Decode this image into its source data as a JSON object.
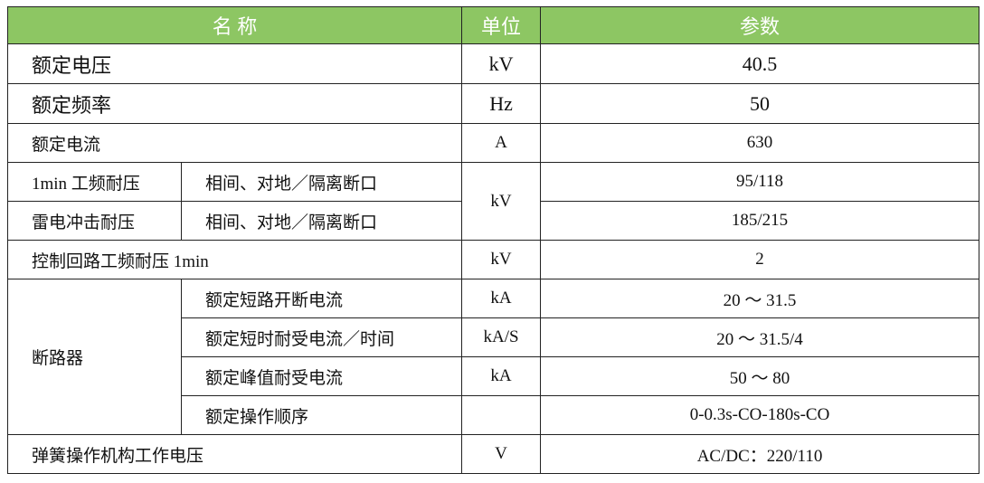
{
  "header": {
    "name": "名 称",
    "unit": "单位",
    "param": "参数",
    "color": "#8dc663"
  },
  "rows": [
    {
      "name": "额定电压",
      "unit": "kV",
      "value": "40.5"
    },
    {
      "name": "额定频率",
      "unit": "Hz",
      "value": "50"
    },
    {
      "name": "额定电流",
      "unit": "A",
      "value": "630"
    },
    {
      "name": "1min 工频耐压",
      "sub": "相间、对地／隔离断口",
      "unit": "kV",
      "value": "95/118"
    },
    {
      "name": "雷电冲击耐压",
      "sub": "相间、对地／隔离断口",
      "value": "185/215"
    },
    {
      "name": "控制回路工频耐压 1min",
      "unit": "kV",
      "value": "2"
    },
    {
      "name": "断路器",
      "sub": "额定短路开断电流",
      "unit": "kA",
      "value": "20 ～ 31.5"
    },
    {
      "sub": "额定短时耐受电流／时间",
      "unit": "kA/S",
      "value": "20 ～ 31.5/4"
    },
    {
      "sub": "额定峰值耐受电流",
      "unit": "kA",
      "value": "50 ～ 80"
    },
    {
      "sub": "额定操作顺序",
      "unit": "",
      "value": "0-0.3s-CO-180s-CO"
    },
    {
      "name": "弹簧操作机构工作电压",
      "unit": "V",
      "value": "AC/DC：220/110"
    }
  ]
}
